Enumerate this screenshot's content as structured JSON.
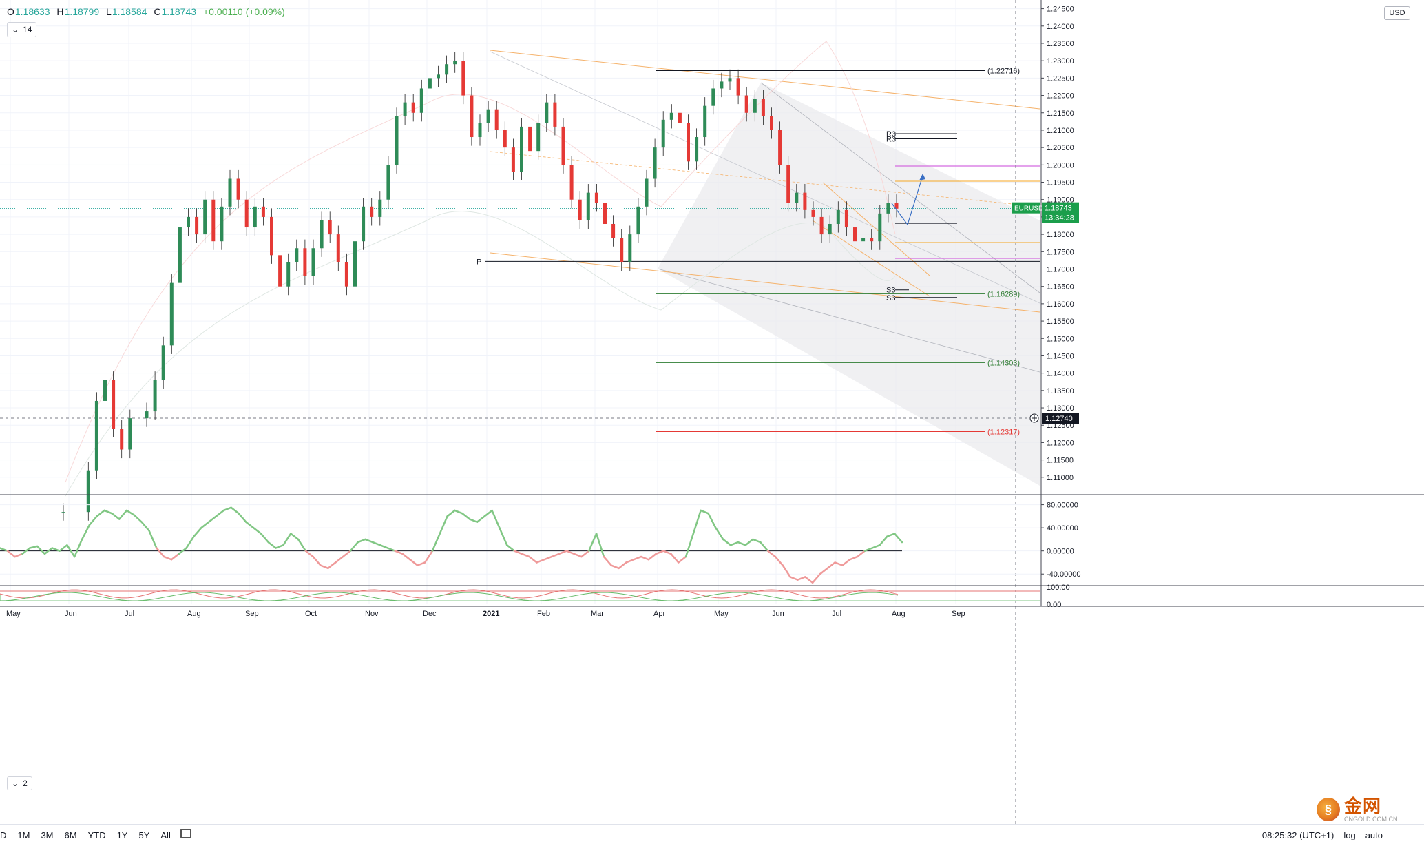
{
  "header": {
    "open_label": "O",
    "open": "1.18633",
    "high_label": "H",
    "high": "1.18799",
    "low_label": "L",
    "low": "1.18584",
    "close_label": "C",
    "close": "1.18743",
    "change": "+0.00110 (+0.09%)",
    "indicator_value": "14",
    "indicator2_value": "2",
    "currency": "USD"
  },
  "colors": {
    "up": "#26a69a",
    "up_candle": "#2e8b57",
    "down": "#ef5350",
    "down_candle": "#e53935",
    "osc_up": "#81c784",
    "osc_down": "#ef9a9a",
    "price_tag": "#1b9e4b",
    "gray_tag": "#131722"
  },
  "chart_data": {
    "type": "line",
    "symbol": "EURUSD",
    "last_price": "1.18743",
    "countdown": "13:34:28",
    "crosshair_price": "1.12740",
    "x_labels": [
      "May",
      "Jun",
      "Jul",
      "Aug",
      "Sep",
      "Oct",
      "Nov",
      "Dec",
      "2021",
      "Feb",
      "Mar",
      "Apr",
      "May",
      "Jun",
      "Jul",
      "Aug",
      "Sep"
    ],
    "y_ticks": [
      "1.24500",
      "1.24000",
      "1.23500",
      "1.23000",
      "1.22500",
      "1.22000",
      "1.21500",
      "1.21000",
      "1.20500",
      "1.20000",
      "1.19500",
      "1.19000",
      "1.18500",
      "1.18000",
      "1.17500",
      "1.17000",
      "1.16500",
      "1.16000",
      "1.15500",
      "1.15000",
      "1.14500",
      "1.14000",
      "1.13500",
      "1.13000",
      "1.12500",
      "1.12000",
      "1.11500",
      "1.11000"
    ],
    "ylim": [
      1.105,
      1.2475
    ],
    "price_path": [
      [
        0,
        1.1
      ],
      [
        3,
        1.112
      ],
      [
        4,
        1.132
      ],
      [
        5,
        1.138
      ],
      [
        6,
        1.124
      ],
      [
        7,
        1.118
      ],
      [
        8,
        1.127
      ],
      [
        10,
        1.129
      ],
      [
        11,
        1.138
      ],
      [
        12,
        1.148
      ],
      [
        13,
        1.166
      ],
      [
        14,
        1.182
      ],
      [
        15,
        1.185
      ],
      [
        16,
        1.18
      ],
      [
        17,
        1.19
      ],
      [
        18,
        1.178
      ],
      [
        19,
        1.188
      ],
      [
        20,
        1.196
      ],
      [
        21,
        1.19
      ],
      [
        22,
        1.182
      ],
      [
        23,
        1.188
      ],
      [
        24,
        1.185
      ],
      [
        25,
        1.174
      ],
      [
        26,
        1.165
      ],
      [
        27,
        1.172
      ],
      [
        28,
        1.176
      ],
      [
        29,
        1.168
      ],
      [
        30,
        1.176
      ],
      [
        31,
        1.184
      ],
      [
        32,
        1.18
      ],
      [
        33,
        1.172
      ],
      [
        34,
        1.165
      ],
      [
        35,
        1.178
      ],
      [
        36,
        1.188
      ],
      [
        37,
        1.185
      ],
      [
        38,
        1.19
      ],
      [
        39,
        1.2
      ],
      [
        40,
        1.214
      ],
      [
        41,
        1.218
      ],
      [
        42,
        1.215
      ],
      [
        43,
        1.222
      ],
      [
        44,
        1.225
      ],
      [
        45,
        1.226
      ],
      [
        46,
        1.229
      ],
      [
        47,
        1.23
      ],
      [
        48,
        1.22
      ],
      [
        49,
        1.208
      ],
      [
        50,
        1.212
      ],
      [
        51,
        1.216
      ],
      [
        52,
        1.21
      ],
      [
        53,
        1.205
      ],
      [
        54,
        1.198
      ],
      [
        55,
        1.211
      ],
      [
        56,
        1.204
      ],
      [
        57,
        1.212
      ],
      [
        58,
        1.218
      ],
      [
        59,
        1.211
      ],
      [
        60,
        1.2
      ],
      [
        61,
        1.19
      ],
      [
        62,
        1.184
      ],
      [
        63,
        1.192
      ],
      [
        64,
        1.189
      ],
      [
        65,
        1.183
      ],
      [
        66,
        1.179
      ],
      [
        67,
        1.172
      ],
      [
        68,
        1.18
      ],
      [
        69,
        1.188
      ],
      [
        70,
        1.196
      ],
      [
        71,
        1.205
      ],
      [
        72,
        1.213
      ],
      [
        73,
        1.215
      ],
      [
        74,
        1.212
      ],
      [
        75,
        1.201
      ],
      [
        76,
        1.208
      ],
      [
        77,
        1.217
      ],
      [
        78,
        1.222
      ],
      [
        79,
        1.224
      ],
      [
        80,
        1.225
      ],
      [
        81,
        1.22
      ],
      [
        82,
        1.215
      ],
      [
        83,
        1.219
      ],
      [
        84,
        1.214
      ],
      [
        85,
        1.21
      ],
      [
        86,
        1.2
      ],
      [
        87,
        1.189
      ],
      [
        88,
        1.192
      ],
      [
        89,
        1.187
      ],
      [
        90,
        1.185
      ],
      [
        91,
        1.18
      ],
      [
        92,
        1.183
      ],
      [
        93,
        1.187
      ],
      [
        94,
        1.182
      ],
      [
        95,
        1.178
      ],
      [
        96,
        1.179
      ],
      [
        97,
        1.178
      ],
      [
        98,
        1.186
      ],
      [
        99,
        1.189
      ],
      [
        100,
        1.1874
      ]
    ],
    "pivot_levels": [
      {
        "label": "P",
        "value": 1.1722
      },
      {
        "label": "R3",
        "value": 1.209
      },
      {
        "label": "R3",
        "value": 1.2075
      },
      {
        "label": "S3",
        "value": 1.164
      },
      {
        "label": "S3",
        "value": 1.1618
      }
    ],
    "level_labels": [
      {
        "text": "(1.22716)",
        "value": 1.22716
      },
      {
        "text": "(1.16289)",
        "value": 1.16289
      },
      {
        "text": "(1.14303)",
        "value": 1.14303
      },
      {
        "text": "(1.12317)",
        "value": 1.12317
      }
    ],
    "oscillator": {
      "y_ticks": [
        "80.00000",
        "40.00000",
        "0.00000",
        "-40.00000"
      ],
      "ylim": [
        -60,
        95
      ],
      "values": [
        5,
        0,
        -10,
        -5,
        5,
        8,
        -5,
        5,
        0,
        10,
        -10,
        20,
        45,
        60,
        70,
        65,
        55,
        70,
        62,
        50,
        35,
        5,
        -10,
        -15,
        -5,
        5,
        25,
        40,
        50,
        60,
        70,
        75,
        65,
        50,
        40,
        30,
        15,
        5,
        10,
        30,
        20,
        0,
        -10,
        -25,
        -30,
        -20,
        -10,
        0,
        15,
        20,
        15,
        10,
        5,
        0,
        -5,
        -15,
        -25,
        -20,
        0,
        30,
        60,
        70,
        65,
        55,
        50,
        60,
        70,
        40,
        10,
        0,
        -5,
        -10,
        -20,
        -15,
        -10,
        -5,
        0,
        -5,
        -10,
        0,
        30,
        -10,
        -25,
        -30,
        -20,
        -15,
        -10,
        -15,
        -5,
        0,
        -5,
        -20,
        -10,
        30,
        70,
        65,
        40,
        20,
        10,
        15,
        10,
        20,
        15,
        0,
        -10,
        -25,
        -45,
        -50,
        -45,
        -55,
        -40,
        -30,
        -20,
        -25,
        -15,
        -10,
        0,
        5,
        10,
        25,
        30,
        15
      ]
    },
    "lower_indicator": {
      "y_ticks": [
        "100.00",
        "0.00"
      ]
    }
  },
  "bottom_bar": {
    "timeframes": [
      "D",
      "1M",
      "3M",
      "6M",
      "YTD",
      "1Y",
      "5Y",
      "All"
    ],
    "time": "08:25:32 (UTC+1)",
    "log": "log",
    "auto": "auto"
  },
  "watermark": {
    "cn": "金网",
    "en": "CNGOLD.COM.CN"
  }
}
